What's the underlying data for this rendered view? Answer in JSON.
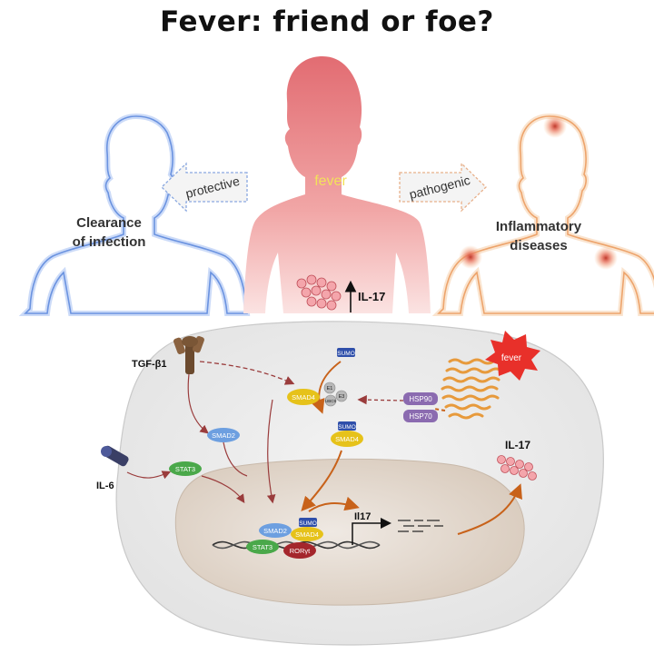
{
  "title": "Fever: friend or foe?",
  "center_label": "fever",
  "left": {
    "arrow_label": "protective",
    "outcome_line1": "Clearance",
    "outcome_line2": "of infection"
  },
  "right": {
    "arrow_label": "pathogenic",
    "outcome_line1": "Inflammatory",
    "outcome_line2": "diseases"
  },
  "il17_top": "IL-17",
  "cell": {
    "tgf": "TGF-β1",
    "il6": "IL-6",
    "smad2": "SMAD2",
    "stat3": "STAT3",
    "smad4": "SMAD4",
    "sumo": "SUMO",
    "e1": "E1",
    "e3": "E3",
    "ubc9": "UBC9",
    "hsp90": "HSP90",
    "hsp70": "HSP70",
    "fever_burst": "fever",
    "il17_secreted": "IL-17",
    "gene": "Il17",
    "roryt": "RORγt"
  },
  "colors": {
    "fever_body": "#e07a80",
    "protective_outline": "#7aa2e8",
    "pathogenic_outline": "#f2b88a",
    "smad4": "#e6c21a",
    "smad2": "#6d9fe0",
    "stat3": "#4aa84a",
    "sumo": "#2f4faa",
    "hsp": "#8b6bb0",
    "roryt": "#a4262c"
  }
}
